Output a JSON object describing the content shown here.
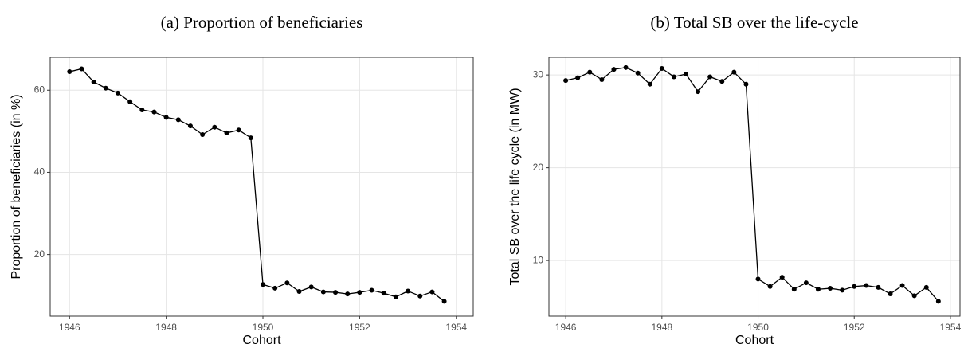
{
  "chart_data": [
    {
      "type": "line",
      "title": "(a) Proportion of beneficiaries",
      "x_label": "Cohort",
      "y_label": "Proportion of beneficiaries (in %)",
      "x": [
        1946,
        1946.25,
        1946.5,
        1946.75,
        1947,
        1947.25,
        1947.5,
        1947.75,
        1948,
        1948.25,
        1948.5,
        1948.75,
        1949,
        1949.25,
        1949.5,
        1949.75,
        1950,
        1950.25,
        1950.5,
        1950.75,
        1951,
        1951.25,
        1951.5,
        1951.75,
        1952,
        1952.25,
        1952.5,
        1952.75,
        1953,
        1953.25,
        1953.5,
        1953.75
      ],
      "values": [
        64.5,
        65.2,
        62,
        60.5,
        59.3,
        57.2,
        55.2,
        54.7,
        53.4,
        52.8,
        51.3,
        49.2,
        51,
        49.6,
        50.3,
        48.4,
        12.7,
        11.8,
        13.1,
        11,
        12.1,
        10.9,
        10.8,
        10.4,
        10.8,
        11.3,
        10.6,
        9.7,
        11.1,
        9.9,
        10.9,
        8.6
      ],
      "color": "#000000",
      "xlim": [
        1945.6,
        1954.35
      ],
      "xticks": [
        1946,
        1948,
        1950,
        1952,
        1954
      ],
      "ylim": [
        5,
        68
      ],
      "yticks": [
        20,
        40,
        60
      ],
      "grid": true
    },
    {
      "type": "line",
      "title": "(b) Total SB over the life-cycle",
      "x_label": "Cohort",
      "y_label": "Total SB over the life cycle (in MW)",
      "x": [
        1946,
        1946.25,
        1946.5,
        1946.75,
        1947,
        1947.25,
        1947.5,
        1947.75,
        1948,
        1948.25,
        1948.5,
        1948.75,
        1949,
        1949.25,
        1949.5,
        1949.75,
        1950,
        1950.25,
        1950.5,
        1950.75,
        1951,
        1951.25,
        1951.5,
        1951.75,
        1952,
        1952.25,
        1952.5,
        1952.75,
        1953,
        1953.25,
        1953.5,
        1953.75
      ],
      "values": [
        29.4,
        29.7,
        30.3,
        29.5,
        30.6,
        30.8,
        30.2,
        29.0,
        30.7,
        29.8,
        30.1,
        28.2,
        29.8,
        29.3,
        30.3,
        29.0,
        8.0,
        7.2,
        8.2,
        6.9,
        7.6,
        6.9,
        7.0,
        6.8,
        7.2,
        7.3,
        7.1,
        6.4,
        7.3,
        6.2,
        7.1,
        5.6
      ],
      "color": "#000000",
      "xlim": [
        1945.65,
        1954.2
      ],
      "xticks": [
        1946,
        1948,
        1950,
        1952,
        1954
      ],
      "ylim": [
        4,
        31.9
      ],
      "yticks": [
        10,
        20,
        30
      ],
      "grid": true
    }
  ]
}
